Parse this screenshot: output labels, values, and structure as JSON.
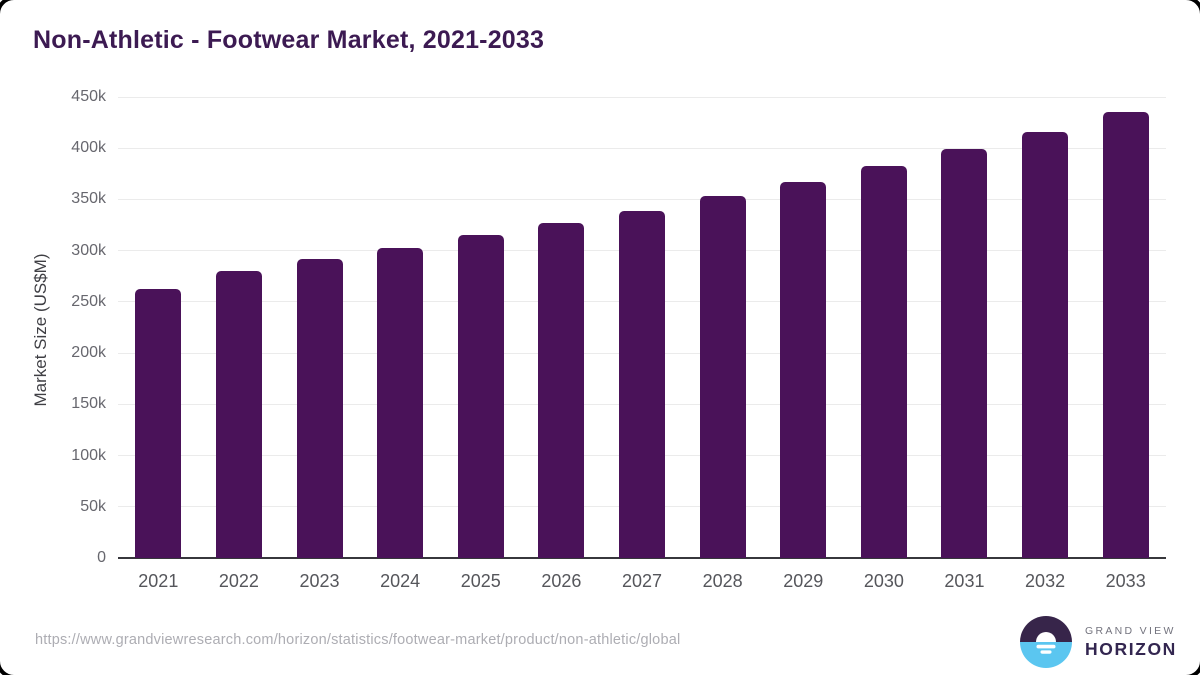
{
  "page": {
    "title": "Non-Athletic - Footwear Market, 2021-2033"
  },
  "chart_data": {
    "type": "bar",
    "title": "Non-Athletic - Footwear Market, 2021-2033",
    "xlabel": "",
    "ylabel": "Market Size (US$M)",
    "categories": [
      "2021",
      "2022",
      "2023",
      "2024",
      "2025",
      "2026",
      "2027",
      "2028",
      "2029",
      "2030",
      "2031",
      "2032",
      "2033"
    ],
    "values": [
      263000,
      280000,
      292000,
      303000,
      315000,
      327000,
      339000,
      353000,
      367000,
      383000,
      399000,
      416000,
      435000
    ],
    "ylim": [
      0,
      450000
    ],
    "yticks": [
      {
        "value": 0,
        "label": "0"
      },
      {
        "value": 50000,
        "label": "50k"
      },
      {
        "value": 100000,
        "label": "100k"
      },
      {
        "value": 150000,
        "label": "150k"
      },
      {
        "value": 200000,
        "label": "200k"
      },
      {
        "value": 250000,
        "label": "250k"
      },
      {
        "value": 300000,
        "label": "300k"
      },
      {
        "value": 350000,
        "label": "350k"
      },
      {
        "value": 400000,
        "label": "400k"
      },
      {
        "value": 450000,
        "label": "450k"
      }
    ],
    "grid": true,
    "legend": false,
    "bar_color": "#4a1259"
  },
  "colors": {
    "title": "#3c1a52",
    "bar": "#4a1259",
    "gridline": "#ebebeb",
    "axis_line": "#37373c",
    "tick_label": "#67676e",
    "x_label": "#55565b",
    "logo_dark": "#37254a",
    "logo_blue": "#5bc6f0"
  },
  "footer": {
    "source_url": "https://www.grandviewresearch.com/horizon/statistics/footwear-market/product/non-athletic/global",
    "logo": {
      "line1": "GRAND VIEW",
      "line2": "HORIZON"
    }
  }
}
